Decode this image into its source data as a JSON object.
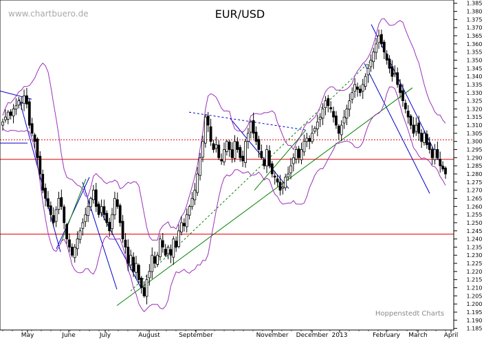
{
  "chart_data": {
    "type": "candlestick",
    "title": "EUR/USD",
    "watermark": "www.chartbuero.de",
    "credit": "Hoppenstedt Charts",
    "ylim": [
      1.184,
      1.387
    ],
    "y_ticks": [
      "1.185",
      "1.190",
      "1.195",
      "1.200",
      "1.205",
      "1.210",
      "1.215",
      "1.220",
      "1.225",
      "1.230",
      "1.235",
      "1.240",
      "1.245",
      "1.250",
      "1.255",
      "1.260",
      "1.265",
      "1.270",
      "1.275",
      "1.280",
      "1.285",
      "1.290",
      "1.295",
      "1.300",
      "1.305",
      "1.310",
      "1.315",
      "1.320",
      "1.325",
      "1.330",
      "1.335",
      "1.340",
      "1.345",
      "1.350",
      "1.355",
      "1.360",
      "1.365",
      "1.370",
      "1.375",
      "1.380",
      "1.385"
    ],
    "x_ticks": [
      "May",
      "June",
      "July",
      "August",
      "September",
      "November",
      "December",
      "2013",
      "February",
      "March",
      "April"
    ],
    "horizontal_lines": [
      {
        "value": 1.301,
        "style": "dotted",
        "color": "#e00000"
      },
      {
        "value": 1.289,
        "style": "solid",
        "color": "#e00000"
      },
      {
        "value": 1.243,
        "style": "solid",
        "color": "#e00000"
      }
    ],
    "closes": [
      1.312,
      1.315,
      1.318,
      1.316,
      1.32,
      1.322,
      1.325,
      1.324,
      1.328,
      1.323,
      1.31,
      1.305,
      1.3,
      1.29,
      1.28,
      1.27,
      1.265,
      1.26,
      1.255,
      1.25,
      1.258,
      1.265,
      1.26,
      1.25,
      1.24,
      1.235,
      1.23,
      1.235,
      1.24,
      1.245,
      1.25,
      1.255,
      1.26,
      1.265,
      1.27,
      1.26,
      1.255,
      1.26,
      1.255,
      1.25,
      1.245,
      1.255,
      1.265,
      1.26,
      1.25,
      1.24,
      1.235,
      1.225,
      1.23,
      1.22,
      1.225,
      1.215,
      1.21,
      1.205,
      1.215,
      1.22,
      1.23,
      1.225,
      1.23,
      1.24,
      1.235,
      1.23,
      1.235,
      1.23,
      1.24,
      1.235,
      1.245,
      1.25,
      1.248,
      1.255,
      1.26,
      1.265,
      1.27,
      1.28,
      1.29,
      1.3,
      1.315,
      1.31,
      1.3,
      1.295,
      1.298,
      1.29,
      1.288,
      1.295,
      1.3,
      1.295,
      1.29,
      1.3,
      1.295,
      1.29,
      1.288,
      1.3,
      1.305,
      1.312,
      1.305,
      1.3,
      1.295,
      1.29,
      1.285,
      1.295,
      1.285,
      1.28,
      1.278,
      1.275,
      1.27,
      1.272,
      1.278,
      1.28,
      1.285,
      1.29,
      1.295,
      1.29,
      1.295,
      1.3,
      1.302,
      1.3,
      1.305,
      1.308,
      1.312,
      1.315,
      1.32,
      1.325,
      1.322,
      1.32,
      1.315,
      1.31,
      1.305,
      1.31,
      1.315,
      1.32,
      1.325,
      1.33,
      1.335,
      1.332,
      1.33,
      1.335,
      1.34,
      1.345,
      1.35,
      1.355,
      1.36,
      1.365,
      1.36,
      1.355,
      1.35,
      1.345,
      1.34,
      1.342,
      1.335,
      1.33,
      1.325,
      1.32,
      1.315,
      1.31,
      1.305,
      1.31,
      1.305,
      1.3,
      1.305,
      1.298,
      1.295,
      1.29,
      1.295,
      1.29,
      1.285,
      1.283,
      1.28
    ]
  }
}
